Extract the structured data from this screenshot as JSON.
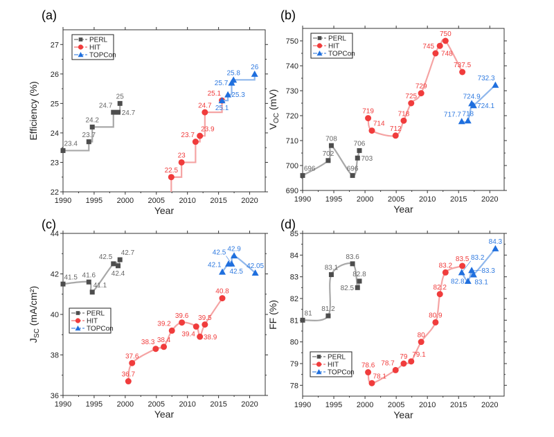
{
  "legend_labels": [
    "PERL",
    "HIT",
    "TOPCon"
  ],
  "colors": {
    "PERL": {
      "marker": "#4d4d4d",
      "line": "#a8a8a8",
      "label": "#666666"
    },
    "HIT": {
      "marker": "#f03c3c",
      "line": "#f5a3a3",
      "label": "#f03c3c"
    },
    "TOPCon": {
      "marker": "#1f6fde",
      "line": "#8fb7ec",
      "label": "#2f7ae0"
    }
  },
  "chart_data": [
    {
      "panel": "(a)",
      "type": "line",
      "line_style": "step",
      "xlabel": "Year",
      "ylabel": "Efficiency (%)",
      "xlim": [
        1990,
        2022.5
      ],
      "ylim": [
        22,
        27.5
      ],
      "xticks": [
        1990,
        1995,
        2000,
        2005,
        2010,
        2015,
        2020
      ],
      "yticks": [
        22,
        23,
        24,
        25,
        26,
        27
      ],
      "legend": "top-left",
      "series": [
        {
          "name": "PERL",
          "marker": "square",
          "x": [
            1990,
            1994.15,
            1994.7,
            1998.1,
            1998.85,
            1999.15
          ],
          "y": [
            23.4,
            23.7,
            24.2,
            24.7,
            24.7,
            25
          ],
          "labels": [
            "23.4",
            "23.7",
            "24.2",
            "24.7",
            "24.7",
            "25"
          ]
        },
        {
          "name": "HIT",
          "marker": "circle",
          "x": [
            2007.4,
            2009.05,
            2011.3,
            2012,
            2012.8,
            2015.55
          ],
          "y": [
            22.5,
            23,
            23.7,
            23.9,
            24.7,
            25.1
          ],
          "labels": [
            "22.5",
            "23",
            "23.7",
            "23.9",
            "24.7",
            "25.1"
          ]
        },
        {
          "name": "TOPCon",
          "marker": "triangle",
          "x": [
            2015.55,
            2016.5,
            2017.1,
            2017.4,
            2020.8
          ],
          "y": [
            25.1,
            25.3,
            25.7,
            25.8,
            26
          ],
          "labels": [
            "25.1",
            "25.3",
            "25.7",
            "25.8",
            "26"
          ]
        }
      ]
    },
    {
      "panel": "(b)",
      "type": "line",
      "line_style": "smooth",
      "xlabel": "Year",
      "ylabel": "V",
      "ylabel_sub": "OC",
      "ylabel_unit": " (mV)",
      "xlim": [
        1990,
        2022.3
      ],
      "ylim": [
        690,
        755
      ],
      "xticks": [
        1990,
        1995,
        2000,
        2005,
        2010,
        2015,
        2020
      ],
      "yticks": [
        690,
        700,
        710,
        720,
        730,
        740,
        750
      ],
      "legend": "top-left",
      "series": [
        {
          "name": "PERL",
          "marker": "square",
          "x": [
            1990,
            1994.1,
            1994.6,
            1998,
            1998.8,
            1999.1
          ],
          "y": [
            696,
            702,
            708,
            696,
            703,
            706
          ],
          "labels": [
            "696",
            "702",
            "708",
            "696",
            "703",
            "706"
          ]
        },
        {
          "name": "HIT",
          "marker": "circle",
          "x": [
            2000.5,
            2001.1,
            2004.9,
            2006.2,
            2007.4,
            2009,
            2011.3,
            2012,
            2012.9,
            2015.6
          ],
          "y": [
            719,
            714,
            712,
            718,
            725,
            729,
            745,
            748,
            750,
            737.5
          ],
          "labels": [
            "719",
            "714",
            "712",
            "718",
            "725",
            "729",
            "745",
            "748",
            "750",
            "737.5"
          ]
        },
        {
          "name": "TOPCon",
          "marker": "triangle",
          "x": [
            2015.5,
            2016.5,
            2017.1,
            2017.4,
            2020.9
          ],
          "y": [
            717.7,
            718,
            724.9,
            724.1,
            732.3
          ],
          "labels": [
            "717.7",
            "718",
            "724.9",
            "724.1",
            "732.3"
          ]
        }
      ]
    },
    {
      "panel": "(c)",
      "type": "line",
      "line_style": "smooth",
      "xlabel": "Year",
      "ylabel": "J",
      "ylabel_sub": "SC",
      "ylabel_unit": " (mA/cm²)",
      "xlim": [
        1990,
        2022.5
      ],
      "ylim": [
        36,
        44
      ],
      "xticks": [
        1990,
        1995,
        2000,
        2005,
        2010,
        2015,
        2020
      ],
      "yticks": [
        36,
        38,
        40,
        42,
        44
      ],
      "legend": "middle-left",
      "series": [
        {
          "name": "PERL",
          "marker": "square",
          "x": [
            1990,
            1994.15,
            1994.7,
            1998.1,
            1998.85,
            1999.15
          ],
          "y": [
            41.5,
            41.6,
            41.1,
            42.5,
            42.4,
            42.7
          ],
          "labels": [
            "41.5",
            "41.6",
            "41.1",
            "42.5",
            "42.4",
            "42.7"
          ]
        },
        {
          "name": "HIT",
          "marker": "circle",
          "x": [
            2000.5,
            2001.1,
            2004.9,
            2006.2,
            2007.5,
            2009.1,
            2011.4,
            2012,
            2012.8,
            2015.6
          ],
          "y": [
            36.7,
            37.6,
            38.3,
            38.4,
            39.2,
            39.6,
            39.4,
            38.9,
            39.5,
            40.8
          ],
          "labels": [
            "36.7",
            "37.6",
            "38.3",
            "38.4",
            "39.2",
            "39.6",
            "39.4",
            "38.9",
            "39.5",
            "40.8"
          ]
        },
        {
          "name": "TOPCon",
          "marker": "triangle",
          "x": [
            2015.6,
            2016.6,
            2017.1,
            2017.5,
            2020.9
          ],
          "y": [
            42.1,
            42.5,
            42.5,
            42.9,
            42.05
          ],
          "labels": [
            "42.1",
            "42.5",
            "42.5",
            "42.9",
            "42.05"
          ]
        }
      ]
    },
    {
      "panel": "(d)",
      "type": "line",
      "line_style": "smooth",
      "xlabel": "Year",
      "ylabel": "FF (%)",
      "xlim": [
        1990,
        2022.3
      ],
      "ylim": [
        77.5,
        85
      ],
      "xticks": [
        1990,
        1995,
        2000,
        2005,
        2010,
        2015,
        2020
      ],
      "yticks": [
        78,
        79,
        80,
        81,
        82,
        83,
        84,
        85
      ],
      "legend": "bottom-left",
      "series": [
        {
          "name": "PERL",
          "marker": "square",
          "x": [
            1990,
            1994.1,
            1994.6,
            1998,
            1998.8,
            1999.1
          ],
          "y": [
            81,
            81.2,
            83.1,
            83.6,
            82.5,
            82.8
          ],
          "labels": [
            "81",
            "81.2",
            "83.1",
            "83.6",
            "82.5",
            "82.8"
          ]
        },
        {
          "name": "HIT",
          "marker": "circle",
          "x": [
            2000.5,
            2001.1,
            2004.9,
            2006.2,
            2007.4,
            2009,
            2011.3,
            2012,
            2012.9,
            2015.6
          ],
          "y": [
            78.6,
            78.1,
            78.7,
            79,
            79.1,
            80,
            80.9,
            82.2,
            83.2,
            83.5
          ],
          "labels": [
            "78.6",
            "78.1",
            "78.7",
            "79",
            "79.1",
            "80",
            "80.9",
            "82.2",
            "83.2",
            "83.5"
          ]
        },
        {
          "name": "TOPCon",
          "marker": "triangle",
          "x": [
            2015.5,
            2016.5,
            2017.1,
            2017.4,
            2020.9
          ],
          "y": [
            83.2,
            82.8,
            83.3,
            83.1,
            84.3
          ],
          "labels": [
            "83.2",
            "82.8",
            "83.3",
            "83.1",
            "84.3"
          ]
        }
      ]
    }
  ]
}
